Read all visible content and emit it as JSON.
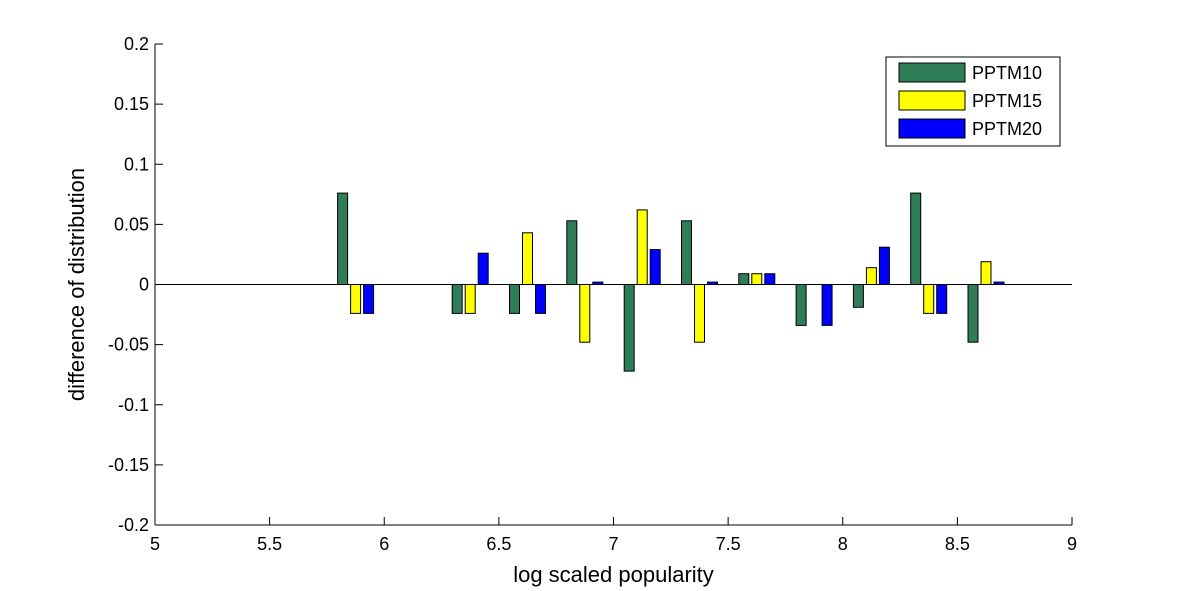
{
  "chart_data": {
    "type": "bar",
    "xlabel": "log scaled popularity",
    "ylabel": "difference of distribution",
    "xlim": [
      5,
      9
    ],
    "ylim": [
      -0.2,
      0.2
    ],
    "x_ticks": [
      "5",
      "5.5",
      "6",
      "6.5",
      "7",
      "7.5",
      "8",
      "8.5",
      "9"
    ],
    "y_ticks": [
      "0.2",
      "0.15",
      "0.1",
      "0.05",
      "0",
      "-0.05",
      "-0.1",
      "-0.15",
      "-0.2"
    ],
    "x": [
      5.875,
      6.375,
      6.625,
      6.875,
      7.125,
      7.375,
      7.625,
      7.875,
      8.125,
      8.375,
      8.625
    ],
    "series": [
      {
        "name": "PPTM10",
        "color": "#2e7d57",
        "values": [
          0.076,
          -0.024,
          -0.024,
          0.053,
          -0.072,
          0.053,
          0.009,
          -0.034,
          -0.019,
          0.076,
          -0.048
        ]
      },
      {
        "name": "PPTM15",
        "color": "#ffff00",
        "values": [
          -0.024,
          -0.024,
          0.043,
          -0.048,
          0.062,
          -0.048,
          0.009,
          0.0,
          0.014,
          -0.024,
          0.019
        ]
      },
      {
        "name": "PPTM20",
        "color": "#0000ff",
        "values": [
          -0.024,
          0.026,
          -0.024,
          0.002,
          0.029,
          0.002,
          0.009,
          -0.034,
          0.031,
          -0.024,
          0.002
        ]
      }
    ],
    "grid": false,
    "legend_position": "top-right"
  }
}
